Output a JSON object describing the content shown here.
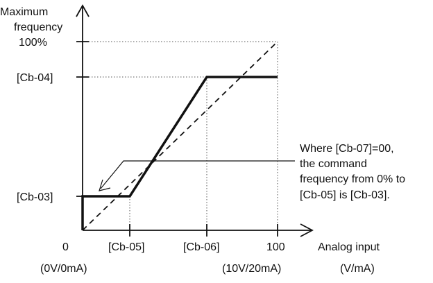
{
  "y_axis": {
    "label_line1": "Maximum",
    "label_line2": "frequency",
    "label_line3": "100%",
    "tick_cb04": "[Cb-04]",
    "tick_cb03": "[Cb-03]"
  },
  "x_axis": {
    "origin": "0",
    "tick_cb05": "[Cb-05]",
    "tick_cb06": "[Cb-06]",
    "tick_100": "100",
    "label": "Analog input",
    "origin_unit": "(0V/0mA)",
    "max_unit": "(10V/20mA)",
    "unit": "(V/mA)"
  },
  "annotation": {
    "line1": "Where [Cb-07]=00,",
    "line2": "the command",
    "line3": "frequency from 0% to",
    "line4": "[Cb-05] is [Cb-03]."
  },
  "colors": {
    "ink": "#111111",
    "guide": "#555555"
  }
}
